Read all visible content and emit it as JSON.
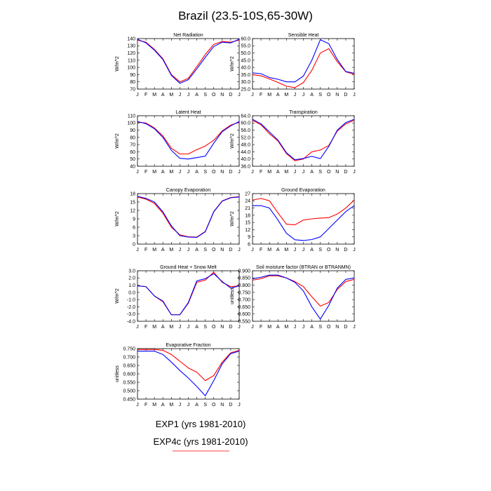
{
  "figure": {
    "title": "Brazil (23.5-10S,65-30W)"
  },
  "legend": [
    {
      "label": "EXP1 (yrs 1981-2010)",
      "color": "#0000ff"
    },
    {
      "label": "EXP4c (yrs 1981-2010)",
      "color": "#ff0000"
    }
  ],
  "colors": {
    "exp1": "#0000ff",
    "exp4c": "#ff0000"
  },
  "chart_data": [
    {
      "type": "line",
      "title": "Net Radiation",
      "ylabel": "W/m^2",
      "categories": [
        "J",
        "F",
        "M",
        "A",
        "M",
        "J",
        "J",
        "A",
        "S",
        "O",
        "N",
        "D",
        "J"
      ],
      "ylim": [
        70,
        140
      ],
      "yticks": [
        "140",
        "130",
        "120",
        "110",
        "100",
        "90",
        "80",
        "70"
      ],
      "series": [
        {
          "name": "EXP1 (yrs 1981-2010)",
          "values": [
            139,
            134,
            124,
            111,
            89,
            78,
            83,
            98,
            114,
            129,
            135,
            134,
            139
          ]
        },
        {
          "name": "EXP4c (yrs 1981-2010)",
          "values": [
            138,
            135,
            125,
            112,
            90,
            80,
            85,
            101,
            118,
            132,
            136,
            135,
            138
          ]
        }
      ]
    },
    {
      "type": "line",
      "title": "Sensible Heat",
      "ylabel": "W/m^2",
      "categories": [
        "J",
        "F",
        "M",
        "A",
        "M",
        "J",
        "J",
        "A",
        "S",
        "O",
        "N",
        "D",
        "J"
      ],
      "ylim": [
        25,
        60
      ],
      "yticks": [
        "60.0",
        "55.0",
        "50.0",
        "45.0",
        "40.0",
        "35.0",
        "30.0",
        "25.0"
      ],
      "series": [
        {
          "name": "EXP1 (yrs 1981-2010)",
          "values": [
            36.2,
            35.7,
            33.0,
            31.8,
            30.0,
            30.0,
            34.0,
            45.0,
            59.2,
            56.5,
            45.5,
            37.2,
            36.0
          ]
        },
        {
          "name": "EXP4c (yrs 1981-2010)",
          "values": [
            35.0,
            34.2,
            32.0,
            29.6,
            27.0,
            26.0,
            29.5,
            38.0,
            50.0,
            53.0,
            44.0,
            37.0,
            35.2
          ]
        }
      ]
    },
    {
      "type": "line",
      "title": "Latent Heat",
      "ylabel": "W/m^2",
      "categories": [
        "J",
        "F",
        "M",
        "A",
        "M",
        "J",
        "J",
        "A",
        "S",
        "O",
        "N",
        "D",
        "J"
      ],
      "ylim": [
        40,
        110
      ],
      "yticks": [
        "110",
        "100",
        "90",
        "80",
        "70",
        "60",
        "50",
        "40"
      ],
      "series": [
        {
          "name": "EXP1 (yrs 1981-2010)",
          "values": [
            102,
            99,
            92,
            80,
            62,
            51,
            50,
            52,
            54,
            72,
            88,
            96,
            102
          ]
        },
        {
          "name": "EXP4c (yrs 1981-2010)",
          "values": [
            101,
            100,
            93,
            82,
            65,
            57,
            57,
            63,
            68,
            76,
            89,
            97,
            101
          ]
        }
      ]
    },
    {
      "type": "line",
      "title": "Transpiration",
      "ylabel": "W/m^2",
      "categories": [
        "J",
        "F",
        "M",
        "A",
        "M",
        "J",
        "J",
        "A",
        "S",
        "O",
        "N",
        "D",
        "J"
      ],
      "ylim": [
        36,
        64
      ],
      "yticks": [
        "64.0",
        "60.0",
        "56.0",
        "52.0",
        "48.0",
        "44.0",
        "40.0",
        "36.0"
      ],
      "series": [
        {
          "name": "EXP1 (yrs 1981-2010)",
          "values": [
            62.0,
            59.5,
            55.0,
            50.5,
            43.5,
            39.6,
            40.3,
            41.5,
            40.2,
            47.0,
            56.0,
            60.2,
            62.0
          ]
        },
        {
          "name": "EXP4c (yrs 1981-2010)",
          "values": [
            61.5,
            59.0,
            54.0,
            50.0,
            43.0,
            39.1,
            40.0,
            44.0,
            45.0,
            47.5,
            55.5,
            59.5,
            61.5
          ]
        }
      ]
    },
    {
      "type": "line",
      "title": "Canopy Evaporation",
      "ylabel": "W/m^2",
      "categories": [
        "J",
        "F",
        "M",
        "A",
        "M",
        "J",
        "J",
        "A",
        "S",
        "O",
        "N",
        "D",
        "J"
      ],
      "ylim": [
        0,
        18
      ],
      "yticks": [
        "18",
        "15",
        "12",
        "9",
        "6",
        "3",
        "0"
      ],
      "series": [
        {
          "name": "EXP1 (yrs 1981-2010)",
          "values": [
            17.0,
            16.3,
            15.0,
            11.5,
            6.5,
            3.0,
            2.5,
            2.4,
            4.4,
            11.5,
            15.3,
            16.5,
            16.8
          ]
        },
        {
          "name": "EXP4c (yrs 1981-2010)",
          "values": [
            16.8,
            16.0,
            14.5,
            11.0,
            6.0,
            3.3,
            2.6,
            2.5,
            4.5,
            11.6,
            15.4,
            16.6,
            16.9
          ]
        }
      ]
    },
    {
      "type": "line",
      "title": "Ground Evaporation",
      "ylabel": "W/m^2",
      "categories": [
        "J",
        "F",
        "M",
        "A",
        "M",
        "J",
        "J",
        "A",
        "S",
        "O",
        "N",
        "D",
        "J"
      ],
      "ylim": [
        6,
        27
      ],
      "yticks": [
        "27",
        "24",
        "21",
        "18",
        "15",
        "12",
        "9",
        "6"
      ],
      "series": [
        {
          "name": "EXP1 (yrs 1981-2010)",
          "values": [
            22.0,
            22.0,
            21.0,
            16.0,
            10.5,
            7.8,
            7.5,
            7.9,
            9.0,
            12.5,
            16.0,
            19.5,
            22.0
          ]
        },
        {
          "name": "EXP4c (yrs 1981-2010)",
          "values": [
            24.3,
            25.0,
            24.0,
            19.0,
            14.3,
            14.0,
            16.0,
            16.5,
            16.8,
            17.0,
            18.5,
            21.0,
            24.3
          ]
        }
      ]
    },
    {
      "type": "line",
      "title": "Ground Heat + Snow Melt",
      "ylabel": "W/m^2",
      "categories": [
        "J",
        "F",
        "M",
        "A",
        "M",
        "J",
        "J",
        "A",
        "S",
        "O",
        "N",
        "D",
        "J"
      ],
      "ylim": [
        -4,
        3
      ],
      "yticks": [
        "3.0",
        "2.0",
        "1.0",
        "0.0",
        "-1.0",
        "-2.0",
        "-3.0",
        "-4.0"
      ],
      "series": [
        {
          "name": "EXP1 (yrs 1981-2010)",
          "values": [
            0.9,
            0.8,
            -0.5,
            -1.2,
            -3.1,
            -3.1,
            -1.4,
            1.6,
            1.9,
            2.6,
            1.5,
            0.6,
            0.9
          ]
        },
        {
          "name": "EXP4c (yrs 1981-2010)",
          "values": [
            0.9,
            0.8,
            -0.5,
            -1.3,
            -3.1,
            -3.1,
            -1.5,
            1.4,
            1.7,
            2.8,
            1.4,
            0.8,
            0.9
          ]
        }
      ]
    },
    {
      "type": "line",
      "title": "Soil moisture factor (BTRAN or BTRANMN)",
      "ylabel": "unitless",
      "categories": [
        "J",
        "F",
        "M",
        "A",
        "M",
        "J",
        "J",
        "A",
        "S",
        "O",
        "N",
        "D",
        "J"
      ],
      "ylim": [
        0.55,
        0.9
      ],
      "yticks": [
        "0.900",
        "0.850",
        "0.800",
        "0.750",
        "0.700",
        "0.650",
        "0.600",
        "0.550"
      ],
      "series": [
        {
          "name": "EXP1 (yrs 1981-2010)",
          "values": [
            0.845,
            0.855,
            0.87,
            0.87,
            0.85,
            0.82,
            0.76,
            0.65,
            0.565,
            0.66,
            0.78,
            0.84,
            0.85
          ]
        },
        {
          "name": "EXP4c (yrs 1981-2010)",
          "values": [
            0.835,
            0.845,
            0.865,
            0.865,
            0.85,
            0.825,
            0.79,
            0.72,
            0.655,
            0.68,
            0.77,
            0.825,
            0.84
          ]
        }
      ]
    },
    {
      "type": "line",
      "title": "Evaporative Fraction",
      "ylabel": "unitless",
      "categories": [
        "J",
        "F",
        "M",
        "A",
        "M",
        "J",
        "J",
        "A",
        "S",
        "O",
        "N",
        "D",
        "J"
      ],
      "ylim": [
        0.45,
        0.75
      ],
      "yticks": [
        "0.750",
        "0.700",
        "0.650",
        "0.600",
        "0.550",
        "0.500",
        "0.450"
      ],
      "series": [
        {
          "name": "EXP1 (yrs 1981-2010)",
          "values": [
            0.735,
            0.735,
            0.735,
            0.715,
            0.67,
            0.62,
            0.575,
            0.525,
            0.47,
            0.56,
            0.66,
            0.72,
            0.735
          ]
        },
        {
          "name": "EXP4c (yrs 1981-2010)",
          "values": [
            0.745,
            0.745,
            0.745,
            0.74,
            0.715,
            0.675,
            0.635,
            0.61,
            0.56,
            0.59,
            0.67,
            0.725,
            0.74
          ]
        }
      ]
    }
  ]
}
